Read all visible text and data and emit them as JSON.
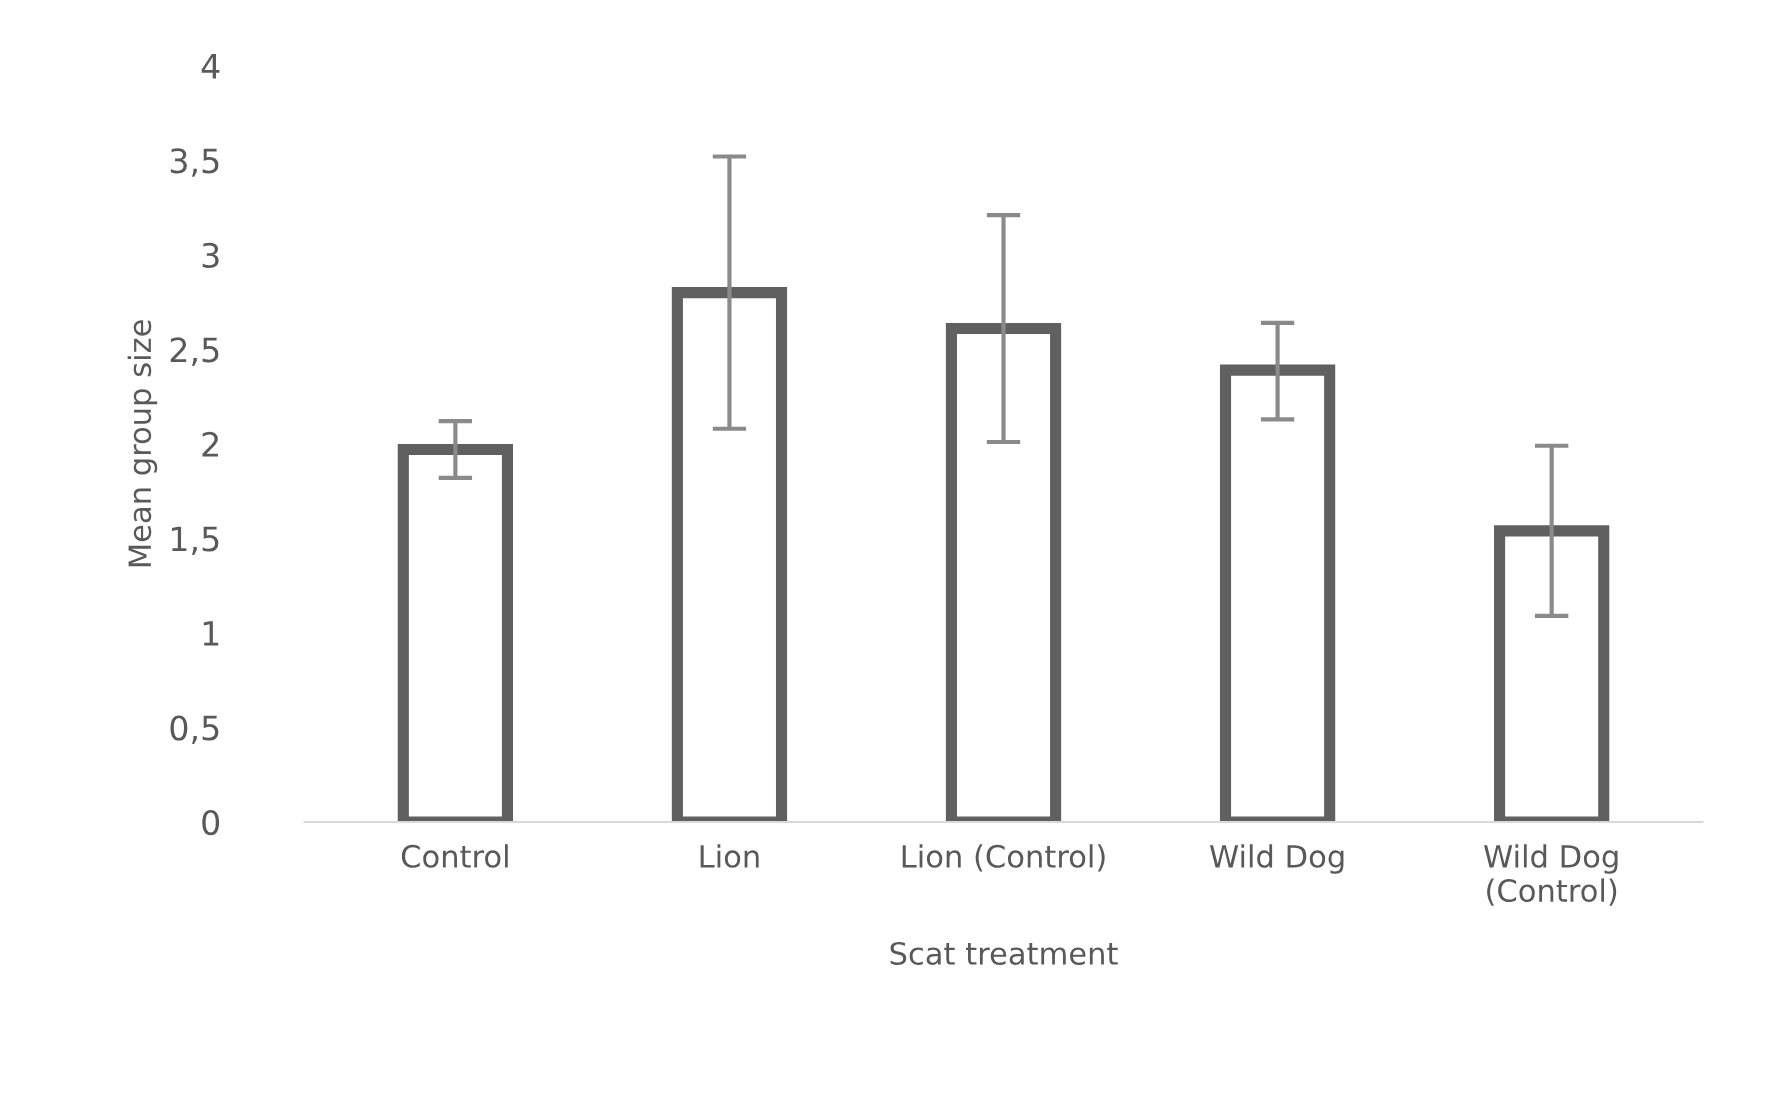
{
  "chart_data": {
    "type": "bar",
    "xlabel": "Scat treatment",
    "ylabel": "Mean group size",
    "categories": [
      "Control",
      "Lion",
      "Lion (Control)",
      "Wild Dog",
      "Wild Dog\n(Control)"
    ],
    "series": [
      {
        "color": "#606060",
        "values": [
          1.97,
          2.8,
          2.61,
          2.39,
          1.54
        ],
        "errors": [
          [
            1.82,
            2.12
          ],
          [
            2.08,
            3.52
          ],
          [
            2.01,
            3.21
          ],
          [
            2.13,
            2.64
          ],
          [
            1.09,
            1.99
          ]
        ]
      }
    ],
    "ylim": [
      0,
      4
    ],
    "yticks": [
      0,
      {
        "value": 0.5,
        "label": "0,5"
      },
      1,
      {
        "value": 1.5,
        "label": "1,5"
      },
      2,
      {
        "value": 2.5,
        "label": "2,5"
      },
      3,
      {
        "value": 3.5,
        "label": "3,5"
      },
      4
    ],
    "grid": false,
    "legend": false
  }
}
